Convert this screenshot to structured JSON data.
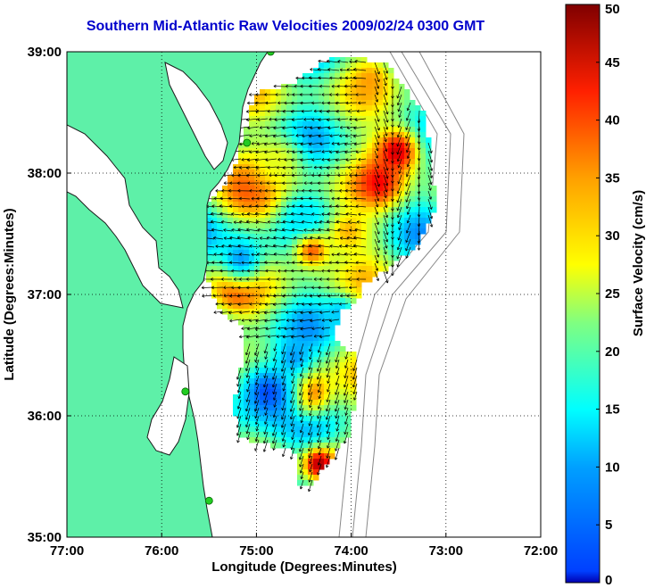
{
  "title": "Southern Mid-Atlantic Raw Velocities 2009/02/24 0300 GMT",
  "colors": {
    "land": "#5ef0a8",
    "ocean": "#ffffff",
    "coast": "#1a1a1a",
    "bathymetry": "#888888",
    "grid": "#000000",
    "title": "#0000cc",
    "station": "#22cc22"
  },
  "map": {
    "xlabel": "Longitude (Degrees:Minutes)",
    "ylabel": "Latitude (Degrees:Minutes)",
    "lon_range": [
      -77,
      -72
    ],
    "lat_range": [
      35,
      39
    ],
    "x_ticks": [
      {
        "value": -77,
        "label": "77:00"
      },
      {
        "value": -76,
        "label": "76:00"
      },
      {
        "value": -75,
        "label": "75:00"
      },
      {
        "value": -74,
        "label": "74:00"
      },
      {
        "value": -73,
        "label": "73:00"
      },
      {
        "value": -72,
        "label": "72:00"
      }
    ],
    "y_ticks": [
      {
        "value": 39,
        "label": "39:00"
      },
      {
        "value": 38,
        "label": "38:00"
      },
      {
        "value": 37,
        "label": "37:00"
      },
      {
        "value": 36,
        "label": "36:00"
      },
      {
        "value": 35,
        "label": "35:00"
      }
    ],
    "grid": "dotted",
    "stations": [
      {
        "name": "station-1",
        "lon": -74.85,
        "lat": 39.0
      },
      {
        "name": "station-2",
        "lon": -75.1,
        "lat": 38.25
      },
      {
        "name": "station-3",
        "lon": -75.75,
        "lat": 36.2
      },
      {
        "name": "station-4",
        "lon": -75.5,
        "lat": 35.3
      }
    ]
  },
  "colorbar": {
    "label": "Surface Velocity (cm/s)",
    "min": 0,
    "max": 50,
    "ticks": [
      {
        "value": 0,
        "label": "0"
      },
      {
        "value": 5,
        "label": "5"
      },
      {
        "value": 10,
        "label": "10"
      },
      {
        "value": 15,
        "label": "15"
      },
      {
        "value": 20,
        "label": "20"
      },
      {
        "value": 25,
        "label": "25"
      },
      {
        "value": 30,
        "label": "30"
      },
      {
        "value": 35,
        "label": "35"
      },
      {
        "value": 40,
        "label": "40"
      },
      {
        "value": 45,
        "label": "45"
      },
      {
        "value": 50,
        "label": "50"
      }
    ],
    "colormap": "jet"
  }
}
